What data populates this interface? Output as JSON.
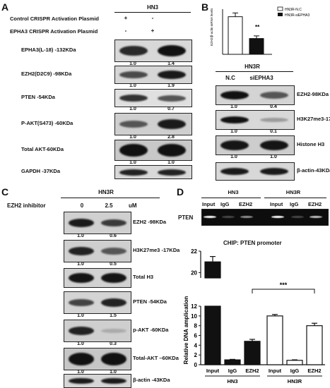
{
  "panels": {
    "A": "A",
    "B": "B",
    "C": "C",
    "D": "D"
  },
  "panelA": {
    "cell_line": "HN3",
    "cond_rows": [
      {
        "label": "Control CRISPR Activation Plasmid",
        "v1": "+",
        "v2": "-"
      },
      {
        "label": "EPHA3 CRISPR Activation Plasmid",
        "v1": "-",
        "v2": "+"
      }
    ],
    "blots": [
      {
        "label": "EPHA3(L-18) -132KDa",
        "q1": "1.0",
        "q2": "1.4"
      },
      {
        "label": "EZH2(D2C9) -98KDa",
        "q1": "1.0",
        "q2": "1.9"
      },
      {
        "label": "PTEN -54KDa",
        "q1": "1.0",
        "q2": "0.7"
      },
      {
        "label": "P-AKT(S473) -60KDa",
        "q1": "1.0",
        "q2": "2.8"
      },
      {
        "label": "Total AKT-60KDa",
        "q1": "1.0",
        "q2": "1.0"
      },
      {
        "label": "GAPDH -37KDa",
        "q1": "",
        "q2": ""
      }
    ]
  },
  "panelB": {
    "legend": [
      "HN3R-N.C",
      "HN3R-siEPHA3"
    ],
    "ylabel": "EZH2/β-actin mRNA levels",
    "sig": "**",
    "cell_line": "HN3R",
    "lanes": [
      "N.C",
      "siEPHA3"
    ],
    "blots": [
      {
        "label": "EZH2-98KDa",
        "q1": "1.0",
        "q2": "0.4"
      },
      {
        "label": "H3K27me3-17KDa",
        "q1": "1.0",
        "q2": "0.1"
      },
      {
        "label": "Histone H3",
        "q1": "1.0",
        "q2": "1.0"
      },
      {
        "label": "β-actin-43KDa",
        "q1": "",
        "q2": ""
      }
    ]
  },
  "panelC": {
    "cell_line": "HN3R",
    "treatment": "EZH2 inhibitor",
    "doses": [
      "0",
      "2.5"
    ],
    "unit": "uM",
    "blots": [
      {
        "label": "EZH2 -98KDa",
        "q1": "1.0",
        "q2": "0.6"
      },
      {
        "label": "H3K27me3 -17KDa",
        "q1": "1.0",
        "q2": "0.5"
      },
      {
        "label": "Total H3",
        "q1": "",
        "q2": ""
      },
      {
        "label": "PTEN -54KDa",
        "q1": "1.0",
        "q2": "1.5"
      },
      {
        "label": "p-AKT -60KDa",
        "q1": "1.0",
        "q2": "0.3"
      },
      {
        "label": "Total-AKT –60KDa",
        "q1": "1.0",
        "q2": "1.0"
      },
      {
        "label": "β-actin -43KDa",
        "q1": "",
        "q2": ""
      }
    ]
  },
  "panelD": {
    "groups": [
      "HN3",
      "HN3R"
    ],
    "lanes": [
      "Input",
      "IgG",
      "EZH2",
      "Input",
      "IgG",
      "EZH2"
    ],
    "gel_label": "PTEN",
    "chart_title": "CHIP: PTEN promoter",
    "ylabel": "Relative DNA amplication",
    "sig": "***"
  },
  "chart_data": {
    "type": "bar",
    "categories": [
      "Input",
      "IgG",
      "EZH2",
      "Input",
      "IgG",
      "EZH2"
    ],
    "groups": [
      "HN3",
      "HN3",
      "HN3",
      "HN3R",
      "HN3R",
      "HN3R"
    ],
    "values": [
      21.0,
      1.0,
      4.8,
      10.0,
      0.9,
      8.0
    ],
    "errors": [
      0.5,
      0.1,
      0.4,
      0.3,
      0.1,
      0.5
    ],
    "fills": [
      "#111111",
      "#111111",
      "#111111",
      "#ffffff",
      "#ffffff",
      "#ffffff"
    ],
    "yticks_lower": [
      "0",
      "2",
      "4",
      "6",
      "8",
      "10",
      "12"
    ],
    "yticks_upper": [
      "20",
      "22"
    ],
    "ylim_lower": [
      0,
      12
    ],
    "ylim_upper": [
      19.5,
      22
    ],
    "title": "CHIP: PTEN promoter",
    "ylabel": "Relative DNA amplication",
    "significance": "***"
  },
  "chart_b": {
    "type": "bar",
    "categories": [
      "HN3R-N.C",
      "HN3R-siEPHA3"
    ],
    "values": [
      1.0,
      0.42
    ],
    "errors": [
      0.1,
      0.07
    ],
    "ylim": [
      0,
      1.2
    ]
  }
}
